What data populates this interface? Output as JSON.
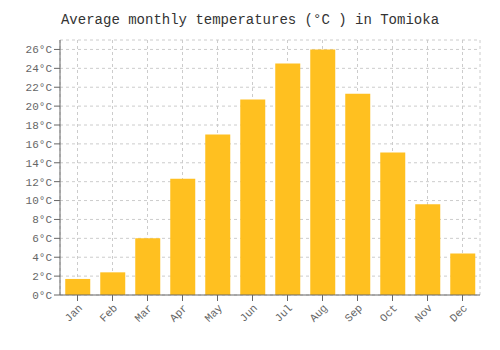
{
  "chart_data": {
    "type": "bar",
    "title": "Average monthly temperatures (°C ) in Tomioka",
    "categories": [
      "Jan",
      "Feb",
      "Mar",
      "Apr",
      "May",
      "Jun",
      "Jul",
      "Aug",
      "Sep",
      "Oct",
      "Nov",
      "Dec"
    ],
    "values": [
      1.7,
      2.4,
      6.0,
      12.3,
      17.0,
      20.7,
      24.5,
      26.0,
      21.3,
      15.1,
      9.6,
      4.4
    ],
    "color": "#FFC020",
    "ylim": [
      0,
      27
    ],
    "yticks": [
      {
        "value": 0,
        "label": "0°C"
      },
      {
        "value": 2,
        "label": "2°C"
      },
      {
        "value": 4,
        "label": "4°C"
      },
      {
        "value": 6,
        "label": "6°C"
      },
      {
        "value": 8,
        "label": "8°C"
      },
      {
        "value": 10,
        "label": "10°C"
      },
      {
        "value": 12,
        "label": "12°C"
      },
      {
        "value": 14,
        "label": "14°C"
      },
      {
        "value": 16,
        "label": "16°C"
      },
      {
        "value": 18,
        "label": "18°C"
      },
      {
        "value": 20,
        "label": "20°C"
      },
      {
        "value": 22,
        "label": "22°C"
      },
      {
        "value": 24,
        "label": "24°C"
      },
      {
        "value": 26,
        "label": "26°C"
      }
    ],
    "grid": true
  }
}
